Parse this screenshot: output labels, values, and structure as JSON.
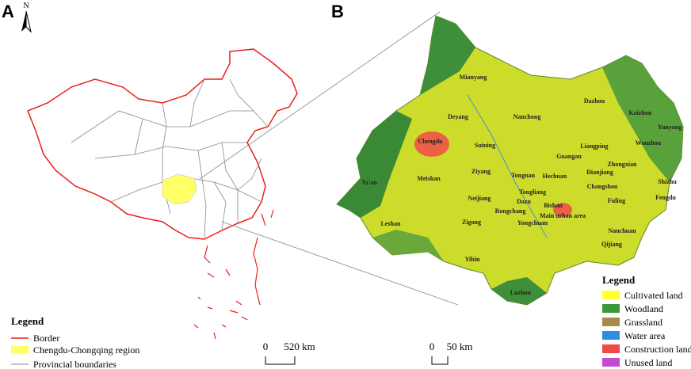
{
  "panel_a": {
    "label": "A",
    "north": "N",
    "legend": {
      "title": "Legend",
      "items": [
        "Border",
        "Chengdu-Chongqing region",
        "Provincial boundaries"
      ]
    },
    "scale": {
      "start": "0",
      "end": "520 km"
    }
  },
  "panel_b": {
    "label": "B",
    "cities": [
      "Mianyang",
      "Dazhou",
      "Kaizhou",
      "Deyang",
      "Nanchong",
      "Yunyang",
      "Chengdu",
      "Wanzhou",
      "Suining",
      "Liangping",
      "Guangan",
      "Zhongxian",
      "Dianjiang",
      "Ziyang",
      "Tongnan",
      "Hechuan",
      "Ya'an",
      "Meishan",
      "Changshou",
      "Shizhu",
      "Tongliang",
      "Fengdu",
      "Neijiang",
      "Dazu",
      "Bishan",
      "Fuling",
      "Leshan",
      "Rongchang",
      "Main urban area",
      "Zigong",
      "Yongchuan",
      "Nanchuan",
      "Qijiang",
      "Yibin",
      "Luzhou"
    ],
    "legend": {
      "title": "Legend",
      "items": [
        {
          "label": "Cultivated land",
          "color": "#ffff33"
        },
        {
          "label": "Woodland",
          "color": "#3a9a3a"
        },
        {
          "label": "Grassland",
          "color": "#a88a4a"
        },
        {
          "label": "Water area",
          "color": "#2b8fe0"
        },
        {
          "label": "Construction land",
          "color": "#f04848"
        },
        {
          "label": "Unused land",
          "color": "#c44ad0"
        }
      ]
    },
    "scale": {
      "start": "0",
      "end": "50 km"
    }
  }
}
